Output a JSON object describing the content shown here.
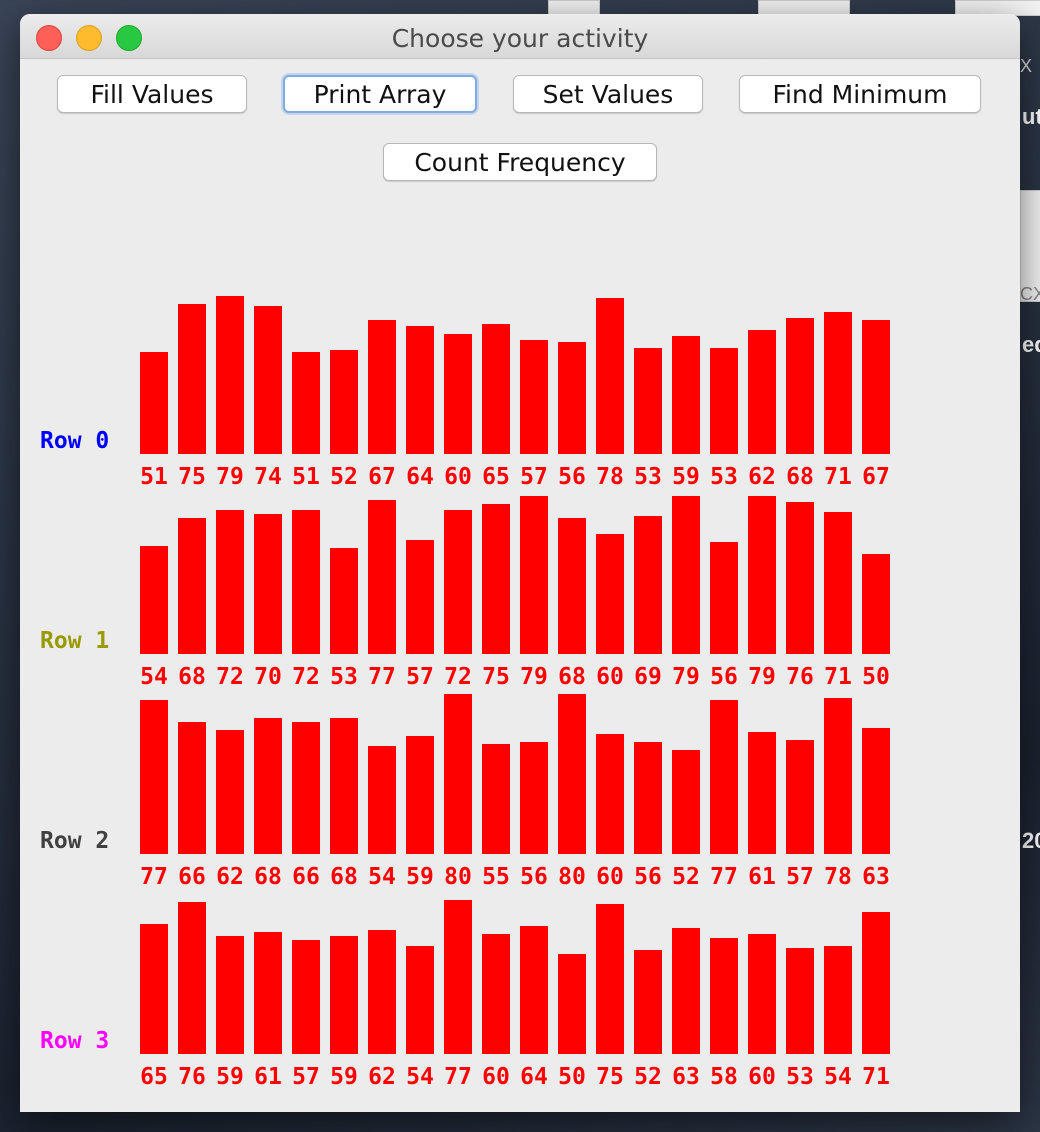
{
  "window": {
    "title": "Choose your activity"
  },
  "buttons": [
    {
      "label": "Fill Values",
      "focused": false
    },
    {
      "label": "Print Array",
      "focused": true
    },
    {
      "label": "Set Values",
      "focused": false
    },
    {
      "label": "Find Minimum",
      "focused": false
    },
    {
      "label": "Count Frequency",
      "focused": false
    }
  ],
  "desktop_fragments": [
    "ut",
    "ed",
    "20",
    "CX",
    "X"
  ],
  "chart_data": {
    "type": "bar",
    "bar_color": "#ff0000",
    "value_label_color": "#ff0000",
    "rows": [
      {
        "label": "Row 0",
        "label_color": "#0000ff",
        "values": [
          51,
          75,
          79,
          74,
          51,
          52,
          67,
          64,
          60,
          65,
          57,
          56,
          78,
          53,
          59,
          53,
          62,
          68,
          71,
          67
        ]
      },
      {
        "label": "Row 1",
        "label_color": "#999900",
        "values": [
          54,
          68,
          72,
          70,
          72,
          53,
          77,
          57,
          72,
          75,
          79,
          68,
          60,
          69,
          79,
          56,
          79,
          76,
          71,
          50
        ]
      },
      {
        "label": "Row 2",
        "label_color": "#404040",
        "values": [
          77,
          66,
          62,
          68,
          66,
          68,
          54,
          59,
          80,
          55,
          56,
          80,
          60,
          56,
          52,
          77,
          61,
          57,
          78,
          63
        ]
      },
      {
        "label": "Row 3",
        "label_color": "#ff00ff",
        "values": [
          65,
          76,
          59,
          61,
          57,
          59,
          62,
          54,
          77,
          60,
          64,
          50,
          75,
          52,
          63,
          58,
          60,
          53,
          54,
          71
        ]
      }
    ]
  }
}
